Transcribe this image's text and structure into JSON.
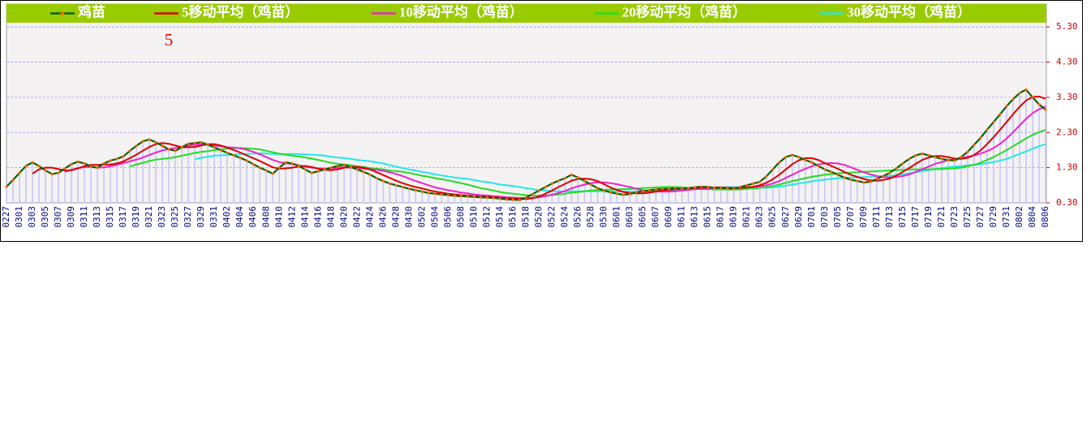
{
  "chart_data": {
    "type": "line",
    "annotation": "5",
    "categories": [
      "0227",
      null,
      "0301",
      null,
      "0303",
      null,
      "0305",
      null,
      "0307",
      null,
      "0309",
      null,
      "0311",
      null,
      "0313",
      null,
      "0315",
      null,
      "0317",
      null,
      "0319",
      null,
      "0321",
      null,
      "0323",
      null,
      "0325",
      null,
      "0327",
      null,
      "0329",
      null,
      "0331",
      null,
      "0402",
      null,
      "0404",
      null,
      "0406",
      null,
      "0408",
      null,
      "0410",
      null,
      "0412",
      null,
      "0414",
      null,
      "0416",
      null,
      "0418",
      null,
      "0420",
      null,
      "0422",
      null,
      "0424",
      null,
      "0426",
      null,
      "0428",
      null,
      "0430",
      null,
      "0502",
      null,
      "0504",
      null,
      "0506",
      null,
      "0508",
      null,
      "0510",
      null,
      "0512",
      null,
      "0514",
      null,
      "0516",
      null,
      "0518",
      null,
      "0520",
      null,
      "0522",
      null,
      "0524",
      null,
      "0526",
      null,
      "0528",
      null,
      "0530",
      null,
      "0601",
      null,
      "0603",
      null,
      "0605",
      null,
      "0607",
      null,
      "0609",
      null,
      "0611",
      null,
      "0613",
      null,
      "0615",
      null,
      "0617",
      null,
      "0619",
      null,
      "0621",
      null,
      "0623",
      null,
      "0625",
      null,
      "0627",
      null,
      "0629",
      null,
      "0701",
      null,
      "0703",
      null,
      "0705",
      null,
      "0707",
      null,
      "0709",
      null,
      "0711",
      null,
      "0713",
      null,
      "0715",
      null,
      "0717",
      null,
      "0719",
      null,
      "0721",
      null,
      "0723",
      null,
      "0725",
      null,
      "0727",
      null,
      "0729",
      null,
      "0731",
      null,
      "0802",
      null,
      "0804",
      null,
      "0806"
    ],
    "series": [
      {
        "name": "鸡苗",
        "color": "#006400",
        "marker_color": "#ff6600",
        "bar_color": "#c8c8f4",
        "values": [
          0.76,
          0.95,
          1.15,
          1.35,
          1.45,
          1.35,
          1.22,
          1.12,
          1.15,
          1.28,
          1.4,
          1.47,
          1.42,
          1.33,
          1.3,
          1.42,
          1.5,
          1.55,
          1.62,
          1.78,
          1.92,
          2.05,
          2.1,
          2.02,
          1.92,
          1.82,
          1.78,
          1.88,
          1.98,
          2.0,
          2.02,
          1.95,
          1.88,
          1.8,
          1.72,
          1.65,
          1.58,
          1.5,
          1.4,
          1.3,
          1.22,
          1.13,
          1.3,
          1.45,
          1.42,
          1.35,
          1.25,
          1.15,
          1.2,
          1.25,
          1.3,
          1.35,
          1.38,
          1.32,
          1.25,
          1.18,
          1.1,
          1.0,
          0.92,
          0.85,
          0.8,
          0.75,
          0.7,
          0.66,
          0.62,
          0.58,
          0.56,
          0.54,
          0.52,
          0.5,
          0.49,
          0.48,
          0.47,
          0.46,
          0.45,
          0.44,
          0.42,
          0.4,
          0.39,
          0.38,
          0.45,
          0.55,
          0.65,
          0.75,
          0.85,
          0.93,
          1.0,
          1.1,
          1.02,
          0.92,
          0.82,
          0.72,
          0.65,
          0.6,
          0.56,
          0.53,
          0.55,
          0.6,
          0.63,
          0.66,
          0.68,
          0.7,
          0.7,
          0.72,
          0.7,
          0.72,
          0.74,
          0.76,
          0.75,
          0.73,
          0.72,
          0.71,
          0.7,
          0.75,
          0.8,
          0.85,
          0.9,
          1.05,
          1.25,
          1.45,
          1.6,
          1.66,
          1.6,
          1.52,
          1.45,
          1.35,
          1.25,
          1.18,
          1.1,
          1.02,
          0.96,
          0.92,
          0.88,
          0.9,
          0.98,
          1.06,
          1.15,
          1.28,
          1.42,
          1.55,
          1.65,
          1.7,
          1.65,
          1.6,
          1.55,
          1.52,
          1.5,
          1.6,
          1.75,
          1.95,
          2.15,
          2.38,
          2.6,
          2.82,
          3.05,
          3.25,
          3.42,
          3.52,
          3.3,
          3.1,
          2.95
        ]
      },
      {
        "name": "5移动平均（鸡苗）",
        "color": "#dd0000",
        "values": [
          null,
          null,
          null,
          null,
          1.13,
          1.25,
          1.3,
          1.3,
          1.26,
          1.22,
          1.23,
          1.28,
          1.34,
          1.38,
          1.38,
          1.39,
          1.39,
          1.42,
          1.48,
          1.57,
          1.67,
          1.78,
          1.89,
          1.97,
          2.0,
          1.98,
          1.93,
          1.88,
          1.88,
          1.89,
          1.93,
          1.97,
          1.97,
          1.93,
          1.87,
          1.8,
          1.73,
          1.65,
          1.57,
          1.49,
          1.4,
          1.31,
          1.27,
          1.28,
          1.3,
          1.33,
          1.35,
          1.32,
          1.27,
          1.24,
          1.23,
          1.25,
          1.3,
          1.32,
          1.32,
          1.3,
          1.25,
          1.17,
          1.09,
          1.01,
          0.93,
          0.86,
          0.8,
          0.75,
          0.71,
          0.66,
          0.62,
          0.59,
          0.56,
          0.54,
          0.52,
          0.51,
          0.49,
          0.48,
          0.47,
          0.46,
          0.45,
          0.43,
          0.42,
          0.41,
          0.41,
          0.43,
          0.48,
          0.56,
          0.65,
          0.75,
          0.84,
          0.93,
          0.98,
          0.99,
          0.97,
          0.92,
          0.83,
          0.74,
          0.67,
          0.61,
          0.58,
          0.57,
          0.57,
          0.59,
          0.62,
          0.65,
          0.67,
          0.69,
          0.7,
          0.71,
          0.72,
          0.73,
          0.73,
          0.74,
          0.74,
          0.73,
          0.72,
          0.72,
          0.74,
          0.76,
          0.8,
          0.87,
          0.97,
          1.1,
          1.25,
          1.4,
          1.51,
          1.57,
          1.57,
          1.52,
          1.43,
          1.35,
          1.27,
          1.18,
          1.1,
          1.04,
          0.98,
          0.94,
          0.93,
          0.95,
          0.99,
          1.07,
          1.18,
          1.29,
          1.41,
          1.52,
          1.59,
          1.63,
          1.63,
          1.6,
          1.56,
          1.55,
          1.58,
          1.66,
          1.79,
          1.97,
          2.17,
          2.38,
          2.6,
          2.82,
          3.03,
          3.21,
          3.31,
          3.32,
          3.26
        ]
      },
      {
        "name": "10移动平均（鸡苗）",
        "color": "#ee22cc",
        "values": [
          null,
          null,
          null,
          null,
          null,
          null,
          null,
          null,
          null,
          1.18,
          1.24,
          1.29,
          1.32,
          1.32,
          1.3,
          1.31,
          1.34,
          1.38,
          1.43,
          1.48,
          1.53,
          1.59,
          1.66,
          1.73,
          1.79,
          1.83,
          1.86,
          1.89,
          1.93,
          1.95,
          1.96,
          1.95,
          1.93,
          1.91,
          1.88,
          1.87,
          1.85,
          1.81,
          1.75,
          1.68,
          1.6,
          1.52,
          1.46,
          1.43,
          1.4,
          1.37,
          1.33,
          1.3,
          1.28,
          1.27,
          1.28,
          1.3,
          1.31,
          1.3,
          1.28,
          1.27,
          1.25,
          1.24,
          1.21,
          1.17,
          1.12,
          1.06,
          0.99,
          0.92,
          0.86,
          0.8,
          0.74,
          0.7,
          0.66,
          0.63,
          0.59,
          0.57,
          0.54,
          0.52,
          0.51,
          0.49,
          0.48,
          0.46,
          0.45,
          0.44,
          0.44,
          0.44,
          0.46,
          0.49,
          0.53,
          0.58,
          0.64,
          0.71,
          0.77,
          0.82,
          0.86,
          0.88,
          0.88,
          0.86,
          0.83,
          0.79,
          0.75,
          0.7,
          0.66,
          0.63,
          0.62,
          0.62,
          0.62,
          0.63,
          0.65,
          0.67,
          0.69,
          0.7,
          0.71,
          0.72,
          0.73,
          0.73,
          0.73,
          0.73,
          0.74,
          0.75,
          0.77,
          0.8,
          0.85,
          0.92,
          1.01,
          1.1,
          1.19,
          1.27,
          1.34,
          1.39,
          1.42,
          1.43,
          1.42,
          1.38,
          1.31,
          1.24,
          1.17,
          1.11,
          1.06,
          1.03,
          1.02,
          1.03,
          1.06,
          1.11,
          1.18,
          1.26,
          1.33,
          1.41,
          1.46,
          1.51,
          1.54,
          1.57,
          1.61,
          1.65,
          1.7,
          1.77,
          1.86,
          1.98,
          2.13,
          2.31,
          2.5,
          2.69,
          2.85,
          2.96,
          3.04
        ]
      },
      {
        "name": "20移动平均（鸡苗）",
        "color": "#22dd22",
        "values": [
          null,
          null,
          null,
          null,
          null,
          null,
          null,
          null,
          null,
          null,
          null,
          null,
          null,
          null,
          null,
          null,
          null,
          null,
          null,
          1.33,
          1.39,
          1.44,
          1.49,
          1.53,
          1.55,
          1.57,
          1.6,
          1.64,
          1.68,
          1.72,
          1.75,
          1.77,
          1.8,
          1.82,
          1.84,
          1.85,
          1.86,
          1.85,
          1.84,
          1.82,
          1.78,
          1.74,
          1.7,
          1.67,
          1.64,
          1.62,
          1.59,
          1.56,
          1.52,
          1.48,
          1.44,
          1.41,
          1.39,
          1.37,
          1.34,
          1.32,
          1.29,
          1.27,
          1.25,
          1.22,
          1.2,
          1.18,
          1.15,
          1.11,
          1.07,
          1.04,
          1.0,
          0.97,
          0.94,
          0.9,
          0.86,
          0.82,
          0.77,
          0.72,
          0.69,
          0.65,
          0.61,
          0.58,
          0.56,
          0.54,
          0.52,
          0.51,
          0.5,
          0.51,
          0.52,
          0.54,
          0.56,
          0.59,
          0.61,
          0.63,
          0.65,
          0.66,
          0.67,
          0.68,
          0.68,
          0.69,
          0.7,
          0.71,
          0.72,
          0.73,
          0.74,
          0.75,
          0.75,
          0.75,
          0.74,
          0.73,
          0.72,
          0.7,
          0.69,
          0.68,
          0.68,
          0.68,
          0.68,
          0.68,
          0.7,
          0.71,
          0.73,
          0.75,
          0.78,
          0.82,
          0.87,
          0.92,
          0.96,
          1.0,
          1.04,
          1.07,
          1.1,
          1.12,
          1.14,
          1.15,
          1.16,
          1.17,
          1.18,
          1.19,
          1.2,
          1.21,
          1.22,
          1.23,
          1.24,
          1.25,
          1.25,
          1.25,
          1.25,
          1.26,
          1.26,
          1.27,
          1.28,
          1.3,
          1.34,
          1.38,
          1.44,
          1.52,
          1.6,
          1.7,
          1.8,
          1.91,
          2.02,
          2.13,
          2.23,
          2.31,
          2.37
        ]
      },
      {
        "name": "30移动平均（鸡苗）",
        "color": "#22e8e8",
        "values": [
          null,
          null,
          null,
          null,
          null,
          null,
          null,
          null,
          null,
          null,
          null,
          null,
          null,
          null,
          null,
          null,
          null,
          null,
          null,
          null,
          null,
          null,
          null,
          null,
          null,
          null,
          null,
          null,
          null,
          1.54,
          1.58,
          1.61,
          1.64,
          1.65,
          1.66,
          1.67,
          1.69,
          1.69,
          1.7,
          1.71,
          1.7,
          1.69,
          1.69,
          1.69,
          1.69,
          1.69,
          1.68,
          1.67,
          1.66,
          1.64,
          1.61,
          1.59,
          1.57,
          1.55,
          1.52,
          1.5,
          1.48,
          1.45,
          1.42,
          1.37,
          1.33,
          1.29,
          1.25,
          1.22,
          1.18,
          1.15,
          1.11,
          1.08,
          1.05,
          1.02,
          1.0,
          0.98,
          0.95,
          0.91,
          0.89,
          0.86,
          0.82,
          0.8,
          0.78,
          0.75,
          0.72,
          0.69,
          0.66,
          0.65,
          0.63,
          0.63,
          0.62,
          0.63,
          0.63,
          0.63,
          0.63,
          0.63,
          0.63,
          0.63,
          0.62,
          0.62,
          0.63,
          0.63,
          0.63,
          0.63,
          0.64,
          0.65,
          0.65,
          0.66,
          0.67,
          0.68,
          0.69,
          0.7,
          0.72,
          0.73,
          0.74,
          0.75,
          0.75,
          0.74,
          0.74,
          0.74,
          0.74,
          0.73,
          0.74,
          0.76,
          0.79,
          0.82,
          0.85,
          0.88,
          0.91,
          0.94,
          0.96,
          0.98,
          1.0,
          1.01,
          1.02,
          1.02,
          1.03,
          1.04,
          1.05,
          1.06,
          1.07,
          1.09,
          1.11,
          1.14,
          1.17,
          1.2,
          1.23,
          1.26,
          1.29,
          1.31,
          1.33,
          1.34,
          1.37,
          1.38,
          1.4,
          1.43,
          1.46,
          1.5,
          1.55,
          1.62,
          1.69,
          1.76,
          1.84,
          1.91,
          1.97
        ]
      }
    ],
    "ylim": [
      0.3,
      5.95
    ],
    "yticks": [
      {
        "value": 0.3,
        "label": "0.30"
      },
      {
        "value": 1.3,
        "label": "1.30"
      },
      {
        "value": 2.3,
        "label": "2.30"
      },
      {
        "value": 3.3,
        "label": "3.30"
      },
      {
        "value": 4.3,
        "label": "4.30"
      },
      {
        "value": 5.3,
        "label": "5.30"
      }
    ],
    "grid": true,
    "legend": "top"
  }
}
